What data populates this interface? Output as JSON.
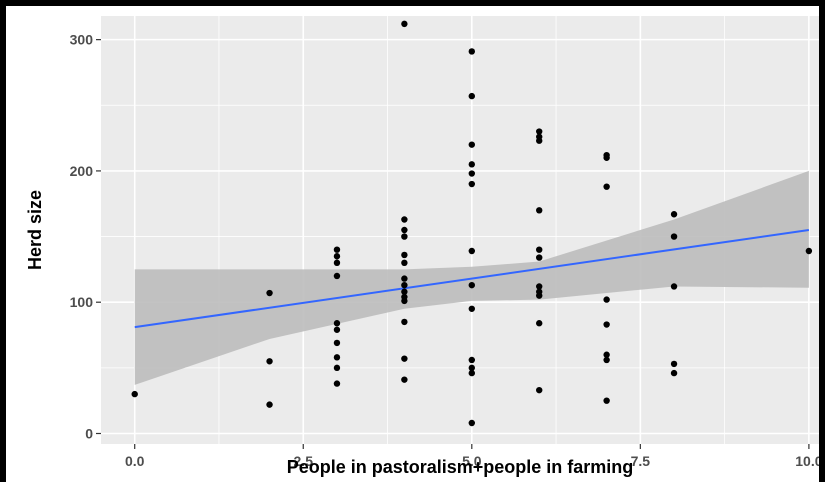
{
  "chart_data": {
    "type": "scatter",
    "title": "",
    "xlabel": "People in pastoralism+people in farming",
    "ylabel": "Herd size",
    "xlim": [
      -0.5,
      10.15
    ],
    "ylim": [
      -8,
      318
    ],
    "x_ticks": [
      "0.0",
      "2.5",
      "5.0",
      "7.5",
      "10.0"
    ],
    "y_ticks": [
      "0",
      "100",
      "200",
      "300"
    ],
    "grid": true,
    "legend": "none",
    "colors": {
      "panel": "#ebebeb",
      "grid": "#ffffff",
      "points": "#000000",
      "fit": "#3366ff",
      "ribbon": "#bdbdbd"
    },
    "points": [
      {
        "x": 0,
        "y": 30
      },
      {
        "x": 2,
        "y": 107
      },
      {
        "x": 2,
        "y": 55
      },
      {
        "x": 2,
        "y": 22
      },
      {
        "x": 3,
        "y": 140
      },
      {
        "x": 3,
        "y": 135
      },
      {
        "x": 3,
        "y": 130
      },
      {
        "x": 3,
        "y": 120
      },
      {
        "x": 3,
        "y": 84
      },
      {
        "x": 3,
        "y": 79
      },
      {
        "x": 3,
        "y": 69
      },
      {
        "x": 3,
        "y": 58
      },
      {
        "x": 3,
        "y": 50
      },
      {
        "x": 3,
        "y": 38
      },
      {
        "x": 4,
        "y": 312
      },
      {
        "x": 4,
        "y": 163
      },
      {
        "x": 4,
        "y": 155
      },
      {
        "x": 4,
        "y": 150
      },
      {
        "x": 4,
        "y": 136
      },
      {
        "x": 4,
        "y": 130
      },
      {
        "x": 4,
        "y": 118
      },
      {
        "x": 4,
        "y": 113
      },
      {
        "x": 4,
        "y": 108
      },
      {
        "x": 4,
        "y": 104
      },
      {
        "x": 4,
        "y": 101
      },
      {
        "x": 4,
        "y": 85
      },
      {
        "x": 4,
        "y": 57
      },
      {
        "x": 4,
        "y": 41
      },
      {
        "x": 5,
        "y": 291
      },
      {
        "x": 5,
        "y": 257
      },
      {
        "x": 5,
        "y": 220
      },
      {
        "x": 5,
        "y": 205
      },
      {
        "x": 5,
        "y": 198
      },
      {
        "x": 5,
        "y": 190
      },
      {
        "x": 5,
        "y": 139
      },
      {
        "x": 5,
        "y": 113
      },
      {
        "x": 5,
        "y": 95
      },
      {
        "x": 5,
        "y": 56
      },
      {
        "x": 5,
        "y": 50
      },
      {
        "x": 5,
        "y": 46
      },
      {
        "x": 5,
        "y": 8
      },
      {
        "x": 6,
        "y": 230
      },
      {
        "x": 6,
        "y": 226
      },
      {
        "x": 6,
        "y": 223
      },
      {
        "x": 6,
        "y": 170
      },
      {
        "x": 6,
        "y": 140
      },
      {
        "x": 6,
        "y": 134
      },
      {
        "x": 6,
        "y": 112
      },
      {
        "x": 6,
        "y": 108
      },
      {
        "x": 6,
        "y": 105
      },
      {
        "x": 6,
        "y": 84
      },
      {
        "x": 6,
        "y": 33
      },
      {
        "x": 7,
        "y": 212
      },
      {
        "x": 7,
        "y": 210
      },
      {
        "x": 7,
        "y": 188
      },
      {
        "x": 7,
        "y": 102
      },
      {
        "x": 7,
        "y": 83
      },
      {
        "x": 7,
        "y": 60
      },
      {
        "x": 7,
        "y": 56
      },
      {
        "x": 7,
        "y": 25
      },
      {
        "x": 8,
        "y": 167
      },
      {
        "x": 8,
        "y": 150
      },
      {
        "x": 8,
        "y": 112
      },
      {
        "x": 8,
        "y": 53
      },
      {
        "x": 8,
        "y": 46
      },
      {
        "x": 10,
        "y": 139
      }
    ],
    "fit": {
      "method": "linear",
      "x": [
        0,
        10
      ],
      "y": [
        81,
        155
      ]
    },
    "ribbon": {
      "x": [
        0,
        2,
        4,
        5,
        6,
        8,
        10
      ],
      "upper": [
        125,
        125,
        125,
        127,
        131,
        163,
        200
      ],
      "lower": [
        37,
        72,
        95,
        101,
        102,
        112,
        111
      ]
    }
  }
}
